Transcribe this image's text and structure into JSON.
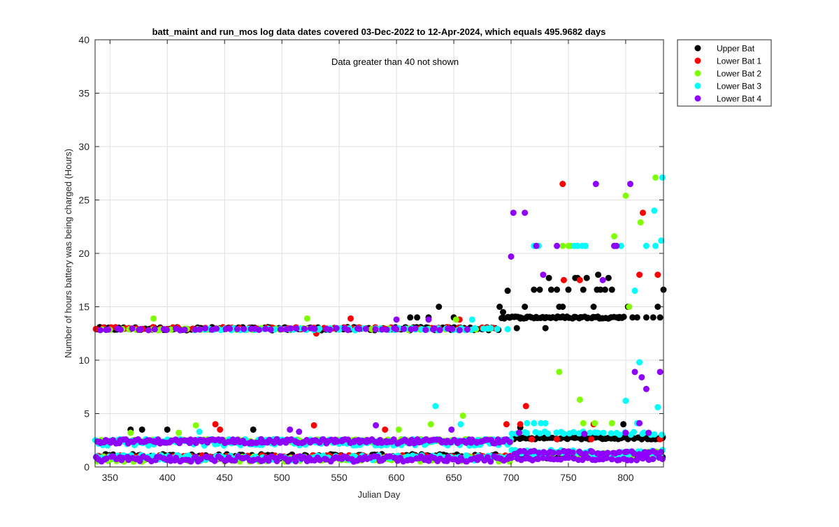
{
  "chart_data": {
    "type": "scatter",
    "title": "batt_maint and run_mos log data  dates covered 03-Dec-2022 to 12-Apr-2024, which equals 495.9682 days",
    "annotation": "Data greater than 40 not shown",
    "xlabel": "Julian Day",
    "ylabel": "Number of hours battery was being charged (Hours)",
    "xlim": [
      337,
      833
    ],
    "ylim": [
      0,
      40
    ],
    "xticks": [
      350,
      400,
      450,
      500,
      550,
      600,
      650,
      700,
      750,
      800
    ],
    "yticks": [
      0,
      5,
      10,
      15,
      20,
      25,
      30,
      35,
      40
    ],
    "grid": true,
    "legend_position": "outside-top-right",
    "series": [
      {
        "name": "Upper Bat",
        "color": "#000000",
        "bands": [
          {
            "x0": 337,
            "x1": 690,
            "y": [
              12.8,
              13.1
            ],
            "n": 140
          },
          {
            "x0": 337,
            "x1": 700,
            "y": [
              0.7,
              1.2
            ],
            "n": 200
          },
          {
            "x0": 690,
            "x1": 800,
            "y": [
              13.9,
              14.1
            ],
            "n": 60
          },
          {
            "x0": 700,
            "x1": 833,
            "y": [
              2.6,
              2.8
            ],
            "n": 60
          },
          {
            "x0": 700,
            "x1": 833,
            "y": [
              0.8,
              1.3
            ],
            "n": 60
          }
        ],
        "points": [
          [
            368,
            3.5
          ],
          [
            378,
            3.5
          ],
          [
            400,
            3.5
          ],
          [
            475,
            3.5
          ],
          [
            612,
            14
          ],
          [
            618,
            14
          ],
          [
            628,
            14
          ],
          [
            637,
            15
          ],
          [
            650,
            14
          ],
          [
            690,
            15
          ],
          [
            693,
            14.5
          ],
          [
            697,
            16.5
          ],
          [
            705,
            13
          ],
          [
            708,
            3.7
          ],
          [
            712,
            15
          ],
          [
            720,
            16.6
          ],
          [
            725,
            16.6
          ],
          [
            730,
            13
          ],
          [
            733,
            17.7
          ],
          [
            735,
            16.6
          ],
          [
            740,
            16.6
          ],
          [
            742,
            15
          ],
          [
            745,
            15
          ],
          [
            750,
            16.6
          ],
          [
            756,
            17.7
          ],
          [
            758,
            17.7
          ],
          [
            763,
            16.6
          ],
          [
            766,
            17.7
          ],
          [
            768,
            2.6
          ],
          [
            772,
            15
          ],
          [
            775,
            16.6
          ],
          [
            776,
            18
          ],
          [
            778,
            16.6
          ],
          [
            782,
            16.6
          ],
          [
            785,
            17.7
          ],
          [
            788,
            16.6
          ],
          [
            798,
            4
          ],
          [
            802,
            15
          ],
          [
            806,
            14
          ],
          [
            810,
            14
          ],
          [
            814,
            2.6
          ],
          [
            818,
            14
          ],
          [
            822,
            2.6
          ],
          [
            824,
            14
          ],
          [
            828,
            15
          ],
          [
            830,
            14
          ],
          [
            833,
            16.6
          ],
          [
            826,
            2.6
          ],
          [
            832,
            2.7
          ]
        ]
      },
      {
        "name": "Lower Bat 1",
        "color": "#ff0000",
        "bands": [
          {
            "x0": 337,
            "x1": 690,
            "y": [
              12.9,
              13.1
            ],
            "n": 60
          },
          {
            "x0": 337,
            "x1": 700,
            "y": [
              0.8,
              1.1
            ],
            "n": 120
          }
        ],
        "points": [
          [
            442,
            4
          ],
          [
            446,
            3.5
          ],
          [
            530,
            12.5
          ],
          [
            528,
            3.9
          ],
          [
            560,
            13.9
          ],
          [
            590,
            3.5
          ],
          [
            655,
            13.8
          ],
          [
            696,
            4
          ],
          [
            708,
            4
          ],
          [
            713,
            5.7
          ],
          [
            718,
            2.6
          ],
          [
            745,
            26.5
          ],
          [
            746,
            17.5
          ],
          [
            740,
            2.6
          ],
          [
            760,
            17.5
          ],
          [
            770,
            2.6
          ],
          [
            772,
            4
          ],
          [
            812,
            18
          ],
          [
            815,
            23.8
          ],
          [
            828,
            18
          ],
          [
            830,
            2.6
          ]
        ]
      },
      {
        "name": "Lower Bat 2",
        "color": "#7fff00",
        "bands": [
          {
            "x0": 337,
            "x1": 700,
            "y": [
              2.3,
              2.6
            ],
            "n": 120
          },
          {
            "x0": 337,
            "x1": 700,
            "y": [
              0.5,
              1.0
            ],
            "n": 120
          },
          {
            "x0": 337,
            "x1": 690,
            "y": [
              12.8,
              13.0
            ],
            "n": 40
          },
          {
            "x0": 700,
            "x1": 833,
            "y": [
              1.0,
              1.5
            ],
            "n": 40
          }
        ],
        "points": [
          [
            368,
            3.2
          ],
          [
            388,
            13.9
          ],
          [
            392,
            12.8
          ],
          [
            410,
            3.2
          ],
          [
            425,
            3.9
          ],
          [
            522,
            13.9
          ],
          [
            602,
            3.5
          ],
          [
            630,
            4
          ],
          [
            652,
            13.8
          ],
          [
            658,
            4.8
          ],
          [
            742,
            8.9
          ],
          [
            745,
            20.7
          ],
          [
            750,
            20.7
          ],
          [
            752,
            20.7
          ],
          [
            760,
            6.3
          ],
          [
            763,
            4.1
          ],
          [
            773,
            4.1
          ],
          [
            788,
            4.1
          ],
          [
            790,
            21.6
          ],
          [
            800,
            25.4
          ],
          [
            803,
            15
          ],
          [
            813,
            22.9
          ],
          [
            826,
            27.1
          ],
          [
            828,
            1.4
          ]
        ]
      },
      {
        "name": "Lower Bat 3",
        "color": "#00ffff",
        "bands": [
          {
            "x0": 337,
            "x1": 700,
            "y": [
              2.0,
              2.6
            ],
            "n": 160
          },
          {
            "x0": 337,
            "x1": 700,
            "y": [
              0.6,
              1.1
            ],
            "n": 140
          },
          {
            "x0": 420,
            "x1": 690,
            "y": [
              12.8,
              13.0
            ],
            "n": 60
          },
          {
            "x0": 700,
            "x1": 833,
            "y": [
              1.0,
              1.6
            ],
            "n": 60
          },
          {
            "x0": 700,
            "x1": 833,
            "y": [
              3.0,
              3.3
            ],
            "n": 30
          }
        ],
        "points": [
          [
            428,
            3.3
          ],
          [
            634,
            5.7
          ],
          [
            656,
            4
          ],
          [
            666,
            13.8
          ],
          [
            697,
            12.9
          ],
          [
            720,
            20.7
          ],
          [
            724,
            20.7
          ],
          [
            714,
            4.1
          ],
          [
            720,
            4.1
          ],
          [
            726,
            4.1
          ],
          [
            730,
            4.1
          ],
          [
            755,
            20.7
          ],
          [
            758,
            20.7
          ],
          [
            762,
            20.7
          ],
          [
            765,
            20.7
          ],
          [
            790,
            20.7
          ],
          [
            796,
            20.7
          ],
          [
            800,
            6.2
          ],
          [
            808,
            16.5
          ],
          [
            810,
            4.1
          ],
          [
            812,
            9.8
          ],
          [
            818,
            20.7
          ],
          [
            825,
            24
          ],
          [
            826,
            20.7
          ],
          [
            828,
            5.6
          ],
          [
            831,
            21.2
          ],
          [
            832,
            27.1
          ]
        ]
      },
      {
        "name": "Lower Bat 4",
        "color": "#8f00ff",
        "bands": [
          {
            "x0": 337,
            "x1": 700,
            "y": [
              2.2,
              2.6
            ],
            "n": 170
          },
          {
            "x0": 337,
            "x1": 700,
            "y": [
              0.5,
              1.0
            ],
            "n": 150
          },
          {
            "x0": 337,
            "x1": 665,
            "y": [
              12.8,
              13.0
            ],
            "n": 60
          },
          {
            "x0": 700,
            "x1": 833,
            "y": [
              1.2,
              1.5
            ],
            "n": 40
          },
          {
            "x0": 700,
            "x1": 833,
            "y": [
              0.6,
              0.9
            ],
            "n": 40
          }
        ],
        "points": [
          [
            507,
            3.5
          ],
          [
            515,
            3.3
          ],
          [
            582,
            3.9
          ],
          [
            600,
            13.8
          ],
          [
            628,
            13.8
          ],
          [
            648,
            3.5
          ],
          [
            700,
            19.7
          ],
          [
            702,
            23.8
          ],
          [
            707,
            3.2
          ],
          [
            712,
            23.8
          ],
          [
            722,
            20.7
          ],
          [
            728,
            18
          ],
          [
            740,
            20.7
          ],
          [
            764,
            3.1
          ],
          [
            774,
            26.5
          ],
          [
            780,
            17.5
          ],
          [
            790,
            20.7
          ],
          [
            792,
            20.7
          ],
          [
            800,
            3.2
          ],
          [
            804,
            26.5
          ],
          [
            808,
            8.9
          ],
          [
            812,
            4.1
          ],
          [
            814,
            8.4
          ],
          [
            818,
            7.3
          ],
          [
            820,
            3.2
          ],
          [
            830,
            8.9
          ]
        ]
      }
    ]
  }
}
